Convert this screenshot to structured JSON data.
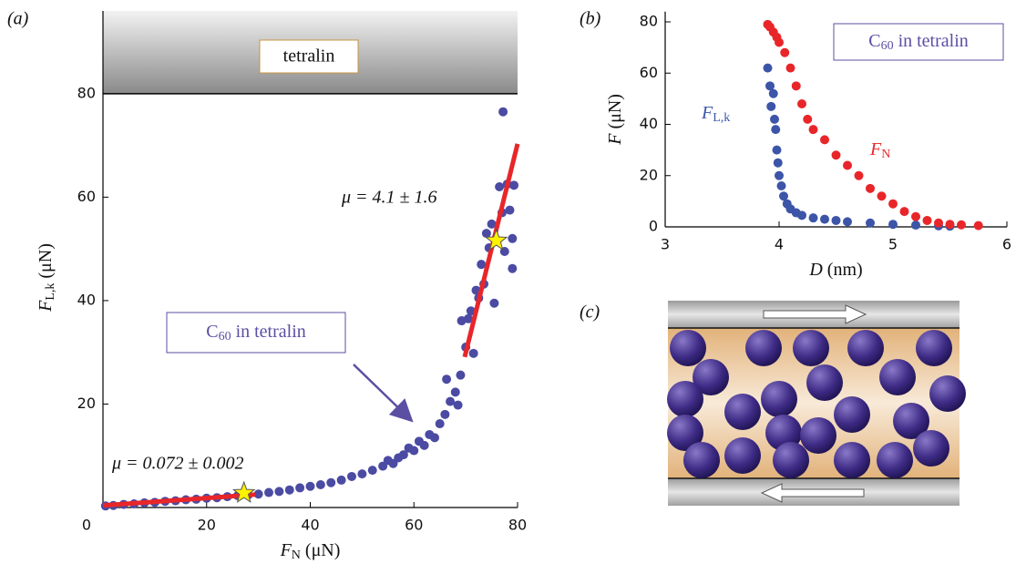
{
  "chart_data": [
    {
      "type": "scatter",
      "panel_label": "(a)",
      "xlabel": {
        "symbol": "F",
        "sub": "N",
        "unit": " (μN)"
      },
      "ylabel": {
        "symbol": "F",
        "sub": "L,k",
        "unit": " (μN)"
      },
      "xlim": [
        0,
        80
      ],
      "ylim": [
        0,
        96
      ],
      "xticks": [
        0,
        20,
        40,
        60,
        80
      ],
      "yticks": [
        20,
        40,
        60,
        80
      ],
      "wall": {
        "y": 80,
        "label": "tetralin"
      },
      "annotation": {
        "text": "C",
        "sub": "60",
        "rest": " in tetralin"
      },
      "series": [
        {
          "color": "#4b4ba3",
          "x": [
            0.5,
            2,
            4,
            6,
            8,
            10,
            12,
            14,
            16,
            18,
            20,
            22,
            24,
            26,
            28,
            30,
            32,
            34,
            36,
            38,
            40,
            42,
            44,
            46,
            48,
            50,
            52,
            54,
            55,
            56,
            57,
            58,
            59,
            60,
            61,
            62,
            63,
            64,
            65,
            66,
            66.3,
            67,
            68,
            68.5,
            69,
            69.2,
            70,
            70.5,
            71,
            71.5,
            72,
            72.5,
            73,
            73.5,
            74,
            74.5,
            75,
            75.5,
            76,
            76.5,
            77,
            77.2,
            77.5,
            78,
            78.5,
            79,
            79.3,
            79
          ],
          "values": [
            0.3,
            0.4,
            0.6,
            0.7,
            0.9,
            1.0,
            1.2,
            1.3,
            1.5,
            1.6,
            1.8,
            1.9,
            2.1,
            2.3,
            2.4,
            2.6,
            2.9,
            3.1,
            3.4,
            3.8,
            4.1,
            4.4,
            4.8,
            5.3,
            6.0,
            6.5,
            7.2,
            8.0,
            9.1,
            8.5,
            9.6,
            10.2,
            11.5,
            11.0,
            12.8,
            12.0,
            14.1,
            13.5,
            16.2,
            18.0,
            24.8,
            20.5,
            22.3,
            19.8,
            25.6,
            36.1,
            31.0,
            36.5,
            38.0,
            29.8,
            42.0,
            40.5,
            47.0,
            43.2,
            53.0,
            50.2,
            54.8,
            39.5,
            51.6,
            62.0,
            57.0,
            76.5,
            49.5,
            62.5,
            57.5,
            52.0,
            62.3,
            46.2
          ]
        }
      ],
      "fits": [
        {
          "x": [
            0,
            29.4
          ],
          "y": [
            0.4,
            2.5
          ],
          "color": "#e8262a",
          "label": "μ = 0.072 ± 0.002"
        },
        {
          "x": [
            69.8,
            80
          ],
          "y": [
            29.1,
            70.3
          ],
          "color": "#e8262a",
          "label": "μ = 4.1 ± 1.6"
        }
      ],
      "stars": {
        "x": [
          27.2,
          75.9
        ],
        "y": [
          2.8,
          51.6
        ],
        "color": "#fff200"
      }
    },
    {
      "type": "scatter",
      "panel_label": "(b)",
      "xlabel": {
        "symbol": "D",
        "unit": " (nm)"
      },
      "ylabel": {
        "symbol": "F",
        "unit": " (μN)"
      },
      "xlim": [
        3,
        6
      ],
      "ylim": [
        0,
        84
      ],
      "xticks": [
        3,
        4,
        5,
        6
      ],
      "yticks": [
        0,
        20,
        40,
        60,
        80
      ],
      "annotation": {
        "text": "C",
        "sub": "60",
        "rest": " in tetralin"
      },
      "series": [
        {
          "label": {
            "symbol": "F",
            "sub": "L,k"
          },
          "color": "#3c55a8",
          "x": [
            3.9,
            3.92,
            3.93,
            3.95,
            3.96,
            3.97,
            3.98,
            3.99,
            4.0,
            4.02,
            4.04,
            4.07,
            4.1,
            4.15,
            4.2,
            4.3,
            4.4,
            4.5,
            4.6,
            4.8,
            5.0,
            5.2,
            5.4,
            5.5
          ],
          "values": [
            62,
            55,
            47,
            52,
            42,
            38,
            30,
            25,
            20,
            16,
            12,
            9,
            7,
            5.5,
            4.5,
            3.5,
            3,
            2.5,
            2,
            1.5,
            1,
            0.7,
            0.4,
            0.3
          ]
        },
        {
          "label": {
            "symbol": "F",
            "sub": "N"
          },
          "color": "#e8262a",
          "x": [
            3.9,
            3.92,
            3.95,
            3.98,
            4.0,
            4.05,
            4.1,
            4.15,
            4.2,
            4.25,
            4.3,
            4.4,
            4.5,
            4.6,
            4.7,
            4.8,
            4.9,
            5.0,
            5.1,
            5.2,
            5.3,
            5.4,
            5.5,
            5.6,
            5.75
          ],
          "values": [
            79,
            78,
            76,
            74,
            72,
            68,
            62,
            55,
            48,
            42,
            38,
            34,
            28,
            24,
            20,
            15,
            12,
            9,
            6,
            4,
            2.5,
            1.5,
            1,
            0.8,
            0.5
          ]
        }
      ]
    }
  ],
  "diagram": {
    "label": "(c)"
  }
}
